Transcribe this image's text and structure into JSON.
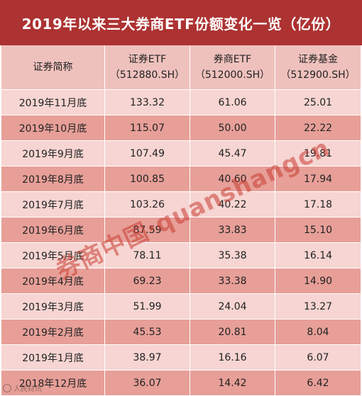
{
  "title": "2019年以来三大券商ETF份额变化一览（亿份）",
  "header": {
    "col0": "证券简称",
    "col1_line1": "证券ETF",
    "col1_line2": "（512880.SH）",
    "col2_line1": "券商ETF",
    "col2_line2": "（512000.SH）",
    "col3_line1": "证券基金",
    "col3_line2": "（512900.SH）"
  },
  "rows": [
    [
      "2019年11月底",
      "133.32",
      "61.06",
      "25.01"
    ],
    [
      "2019年10月底",
      "115.07",
      "50.00",
      "22.22"
    ],
    [
      "2019年9月底",
      "107.49",
      "45.47",
      "19.81"
    ],
    [
      "2019年8月底",
      "100.85",
      "40.60",
      "17.94"
    ],
    [
      "2019年7月底",
      "103.26",
      "40.22",
      "17.18"
    ],
    [
      "2019年6月底",
      "87.59",
      "33.83",
      "15.10"
    ],
    [
      "2019年5月底",
      "78.11",
      "35.38",
      "16.14"
    ],
    [
      "2019年4月底",
      "69.23",
      "33.38",
      "14.90"
    ],
    [
      "2019年3月底",
      "51.99",
      "24.04",
      "13.27"
    ],
    [
      "2019年2月底",
      "45.53",
      "20.81",
      "8.04"
    ],
    [
      "2019年1月底",
      "38.97",
      "16.16",
      "6.07"
    ],
    [
      "2018年12月底",
      "36.07",
      "14.42",
      "6.42"
    ]
  ],
  "watermark": "券商中国·quanshangcn",
  "corner_logo": "人民财讯",
  "colors": {
    "title_bg": "#ad3232",
    "header_bg": "#efc1bd",
    "row_light": "#f6d5d2",
    "row_dark": "#e79f98"
  }
}
